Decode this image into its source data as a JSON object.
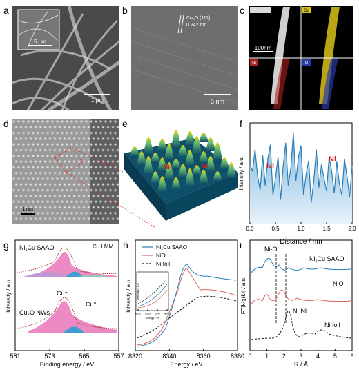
{
  "figure": {
    "panels": {
      "a": {
        "letter": "a",
        "scalebar_main": "1 μm",
        "scalebar_inset": "5 μm"
      },
      "b": {
        "letter": "b",
        "lattice_label": "Cu₂O (111)",
        "spacing": "0.242 nm",
        "scalebar": "5 nm"
      },
      "c": {
        "letter": "c",
        "scalebar": "100nm",
        "map_labels": [
          "Cu",
          "Ni",
          "O"
        ]
      },
      "d": {
        "letter": "d",
        "scalebar": "1 nm"
      },
      "e": {
        "letter": "e",
        "ni_labels": [
          "Ni",
          "Ni"
        ]
      },
      "f": {
        "letter": "f",
        "ylabel": "Intensity / a.u.",
        "xlabel": "Distance / nm",
        "ni_labels": [
          "Ni",
          "Ni"
        ]
      },
      "g": {
        "letter": "g",
        "xlabel": "Binding energy / eV",
        "ylabel": "Intensity / a.u.",
        "title": "Cu LMM",
        "sample_top": "Ni₁Cu SAAO",
        "sample_bottom": "Cu₂O NWs",
        "peak_labels": [
          "Cu⁺",
          "Cu⁰"
        ]
      },
      "h": {
        "letter": "h",
        "xlabel": "Energy / eV",
        "ylabel": "Intensity / a.u."
      },
      "i": {
        "letter": "i",
        "xlabel": "R / Å",
        "ylabel": "FT|k³χ(k)| / a.u.",
        "annotations": [
          "Ni-O",
          "Ni-Ni"
        ],
        "trace_labels": [
          "Ni₁Cu SAAO",
          "NiO",
          "Ni foil"
        ]
      }
    }
  },
  "chart_data": [
    {
      "type": "line",
      "panel": "f",
      "xlabel": "Distance / nm",
      "ylabel": "Intensity / a.u.",
      "xlim": [
        0,
        2.0
      ],
      "xticks": [
        "0.0",
        "0.5",
        "1.0",
        "1.5",
        "2.0"
      ],
      "ylim": [
        0,
        1
      ],
      "series": [
        {
          "x": [
            0.0,
            0.05,
            0.1,
            0.15,
            0.2,
            0.25,
            0.3,
            0.35,
            0.4,
            0.45,
            0.5,
            0.55,
            0.6,
            0.65,
            0.7,
            0.75,
            0.8,
            0.85,
            0.9,
            0.95,
            1.0,
            1.05,
            1.1,
            1.15,
            1.2,
            1.25,
            1.3,
            1.35,
            1.4,
            1.45,
            1.5,
            1.55,
            1.6,
            1.65,
            1.7,
            1.75,
            1.8,
            1.85,
            1.9,
            1.95,
            2.0
          ],
          "y": [
            0.62,
            0.55,
            0.78,
            0.5,
            0.35,
            0.72,
            0.4,
            0.68,
            0.83,
            0.3,
            0.48,
            0.7,
            0.25,
            0.6,
            0.85,
            0.4,
            0.58,
            0.95,
            0.45,
            0.7,
            0.82,
            0.3,
            0.52,
            0.66,
            0.22,
            0.45,
            0.78,
            0.38,
            0.62,
            0.48,
            0.34,
            0.7,
            0.55,
            0.32,
            0.65,
            0.42,
            0.3,
            0.68,
            0.5,
            0.28,
            0.6
          ]
        }
      ]
    },
    {
      "type": "line",
      "panel": "g",
      "xlabel": "Binding energy / eV",
      "xlim": [
        581,
        557
      ],
      "xticks": [
        "581",
        "573",
        "565",
        "557"
      ]
    },
    {
      "type": "line",
      "panel": "h",
      "xlabel": "Energy / eV",
      "xlim": [
        8320,
        8380
      ],
      "xticks": [
        "8320",
        "8340",
        "8360",
        "8380"
      ],
      "inset_xticks": [
        "8330",
        "8335",
        "8340",
        "8345"
      ],
      "inset_xlabel": "Energy / eV",
      "inset_ylabel": "Intensity / a.u.",
      "series": [
        {
          "name": "Ni₁Cu SAAO",
          "color": "#2a7fb8"
        },
        {
          "name": "NiO",
          "color": "#e06060"
        },
        {
          "name": "Ni foil",
          "color": "#111111"
        }
      ]
    },
    {
      "type": "line",
      "panel": "i",
      "xlabel": "R / Å",
      "xlim": [
        0,
        6
      ],
      "xticks": [
        "0",
        "1",
        "2",
        "3",
        "4",
        "5",
        "6"
      ]
    }
  ]
}
